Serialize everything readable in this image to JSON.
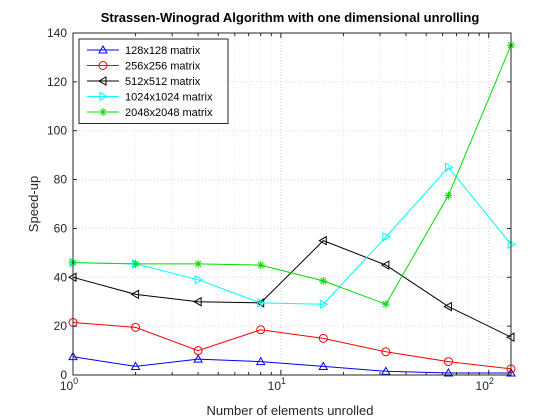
{
  "chart_data": {
    "type": "line",
    "title": "Strassen-Winograd Algorithm with one dimensional unrolling",
    "xlabel": "Number of elements unrolled",
    "ylabel": "Speed-up",
    "xscale": "log",
    "xlim": [
      1,
      128
    ],
    "ylim": [
      0,
      140
    ],
    "yticks": [
      0,
      20,
      40,
      60,
      80,
      100,
      120,
      140
    ],
    "xticks": [
      1,
      10,
      100
    ],
    "xtick_labels": [
      {
        "base": "10",
        "exp": "0"
      },
      {
        "base": "10",
        "exp": "1"
      },
      {
        "base": "10",
        "exp": "2"
      }
    ],
    "grid": true,
    "legend_position": "top-left",
    "x": [
      1,
      2,
      4,
      8,
      16,
      32,
      64,
      128
    ],
    "series": [
      {
        "name": "128x128 matrix",
        "color": "#0000ff",
        "marker": "triangle-up",
        "values": [
          7.5,
          3.5,
          6.5,
          5.5,
          3.5,
          1.5,
          0.8,
          0.8
        ]
      },
      {
        "name": "256x256 matrix",
        "color": "#ff0000",
        "marker": "circle",
        "values": [
          21.5,
          19.5,
          10,
          18.5,
          15,
          9.5,
          5.5,
          2.5
        ]
      },
      {
        "name": "512x512 matrix",
        "color": "#000000",
        "marker": "triangle-left",
        "values": [
          40,
          33,
          30,
          29.5,
          55,
          45,
          28,
          15.5
        ]
      },
      {
        "name": "1024x1024 matrix",
        "color": "#00ffff",
        "marker": "triangle-right",
        "values": [
          46,
          45.5,
          39,
          29.5,
          29,
          56.5,
          85,
          53.5
        ]
      },
      {
        "name": "2048x2048 matrix",
        "color": "#00dd00",
        "marker": "asterisk",
        "values": [
          46,
          45.5,
          45.5,
          45,
          38.5,
          29,
          73.5,
          135
        ]
      }
    ]
  }
}
